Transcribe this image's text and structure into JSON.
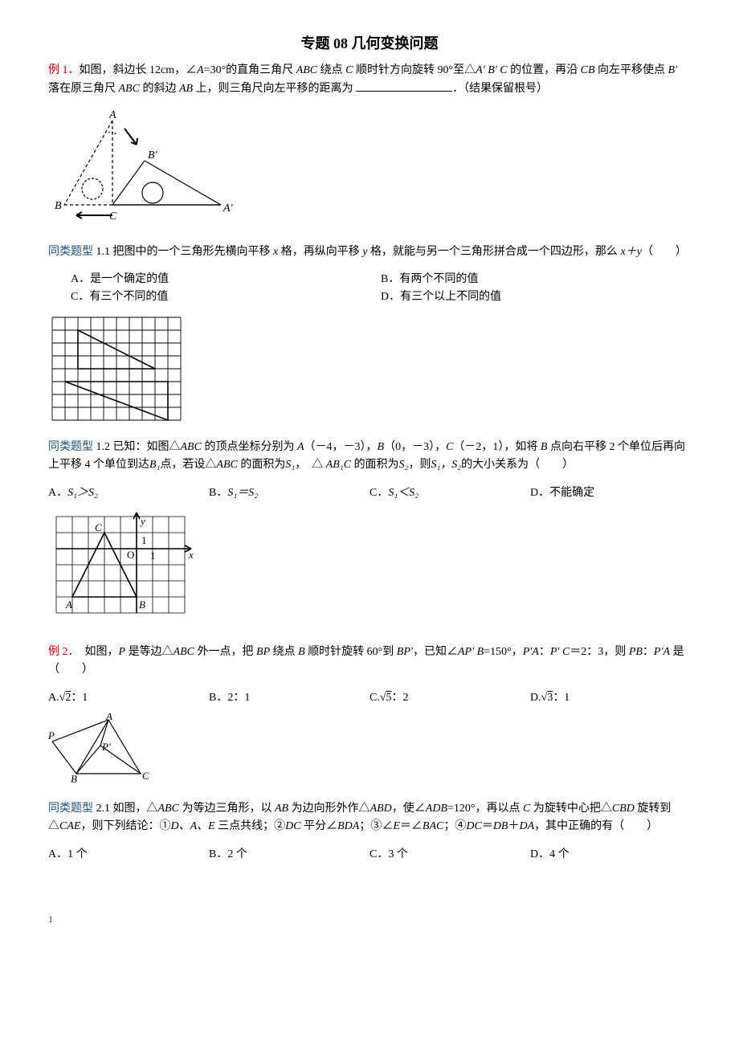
{
  "title": "专题 08  几何变换问题",
  "page_number": "1",
  "p1": {
    "prefix": "例 1．",
    "body_a": "如图，斜边长 12cm，∠",
    "body_b": "=30°的直角三角尺 ",
    "body_c": " 绕点 ",
    "body_d": " 顺时针方向旋转 90°至△",
    "body_e": " 的位置，再沿 ",
    "body_f": " 向左平移使点 ",
    "body_g": " 落在原三角尺 ",
    "body_h": " 的斜边 ",
    "body_i": " 上，则三角尺向左平移的距离为 ",
    "body_j": "．（结果保留根号）",
    "A": "A",
    "ABC": "ABC",
    "C": "C",
    "ApBpC": "A′ B′ C",
    "CB": "CB",
    "Bp": "B′",
    "AB": "AB"
  },
  "fig1": {
    "labels": {
      "A": "A",
      "B": "B",
      "Bp": "B′",
      "C": "C",
      "Ap": "A′"
    },
    "stroke": "#000000",
    "dash": "4,3"
  },
  "p11": {
    "prefix": "同类题型",
    "num": " 1.1 ",
    "body_a": "把图中的一个三角形先横向平移 ",
    "body_b": " 格，再纵向平移 ",
    "body_c": " 格，就能与另一个三角形拼合成一个四边形，那么 ",
    "body_d": "（　　）",
    "x": "x",
    "y": "y",
    "xy": "x＋y",
    "optA": "A．是一个确定的值",
    "optB": "B．有两个不同的值",
    "optC": "C．有三个不同的值",
    "optD": "D．有三个以上不同的值"
  },
  "fig11": {
    "cols": 10,
    "rows": 8,
    "cell": 16,
    "stroke": "#000000",
    "tri1": [
      [
        2,
        1
      ],
      [
        8,
        4
      ],
      [
        2,
        4
      ]
    ],
    "tri2": [
      [
        1,
        5
      ],
      [
        9,
        5
      ],
      [
        9,
        8
      ]
    ]
  },
  "p12": {
    "prefix": "同类题型",
    "num": " 1.2 ",
    "body_a": "已知：如图△",
    "body_b": " 的顶点坐标分别为 ",
    "body_c": "（－4，－3），",
    "body_d": "（0，－3），",
    "body_e": "（－2，1），如将 ",
    "body_f": " 点向右平移 2 个单位后再向上平移 4 个单位到达",
    "body_g": "点，若设△",
    "body_h": " 的面积为",
    "body_i": "，　△ ",
    "body_j": " 的面积为",
    "body_k": "，则",
    "body_l": "的大小关系为（　　）",
    "ABC": "ABC",
    "A": "A",
    "B": "B",
    "C": "C",
    "B1": "B₁",
    "AB1C": "AB₁C",
    "S1": "S₁",
    "S2": "S₂",
    "S1S2": "S₁，S₂",
    "optA_pre": "A．",
    "optA": "S₁＞S₂",
    "optB_pre": "B．",
    "optB": "S₁＝S₂",
    "optC_pre": "C．",
    "optC": "S₁＜S₂",
    "optD_pre": "D．",
    "optD": "不能确定"
  },
  "fig12": {
    "stroke": "#000000",
    "labels": {
      "y": "y",
      "x": "x",
      "O": "O",
      "one_y": "1",
      "one_x": "1",
      "C": "C",
      "A": "A",
      "B": "B"
    }
  },
  "p2": {
    "prefix": "例 2．",
    "body_a": "　如图，",
    "body_b": " 是等边△",
    "body_c": " 外一点，把 ",
    "body_d": " 绕点 ",
    "body_e": " 顺时针旋转 60°到 ",
    "body_f": "，已知∠",
    "body_g": "=150°，",
    "body_h": "：",
    "body_i": "＝2：3，则 ",
    "body_j": "：",
    "body_k": " 是（　　）",
    "P": "P",
    "ABC": "ABC",
    "BP": "BP",
    "B": "B",
    "BPp": "BP′",
    "APpB": "AP′ B",
    "PpA": "P′A",
    "PpC": "P′ C",
    "PB": "PB",
    "optA_pre": "A.",
    "optA_rad": "2",
    "optA_suf": "：1",
    "optB": "B．2：1",
    "optC_pre": "C.",
    "optC_rad": "5",
    "optC_suf": "：2",
    "optD_pre": "D.",
    "optD_rad": "3",
    "optD_suf": "：1"
  },
  "fig2": {
    "stroke": "#000000",
    "labels": {
      "A": "A",
      "B": "B",
      "C": "C",
      "P": "P",
      "Pp": "P′"
    }
  },
  "p21": {
    "prefix": "同类题型",
    "num": " 2.1 ",
    "body_a": "如图，△",
    "body_b": " 为等边三角形，以 ",
    "body_c": " 为边向形外作△",
    "body_d": "，使∠",
    "body_e": "=120°，再以点 ",
    "body_f": " 为旋转中心把△",
    "body_g": " 旋转到△",
    "body_h": "，则下列结论：①",
    "body_i": " 三点共线；②",
    "body_j": " 平分∠",
    "body_k": "；③∠",
    "body_l": "＝∠",
    "body_m": "；④",
    "body_n": "＝",
    "body_o": "＋",
    "body_p": "，其中正确的有（　　）",
    "ABC": "ABC",
    "AB": "AB",
    "ABD": "ABD",
    "ADB": "ADB",
    "C": "C",
    "CBD": "CBD",
    "CAE": "CAE",
    "DAE": "D、A、E",
    "DC": "DC",
    "BDA": "BDA",
    "E": "E",
    "BAC": "BAC",
    "DC2": "DC",
    "DB": "DB",
    "DA": "DA",
    "optA": "A．1 个",
    "optB": "B．2 个",
    "optC": "C．3 个",
    "optD": "D．4 个"
  }
}
